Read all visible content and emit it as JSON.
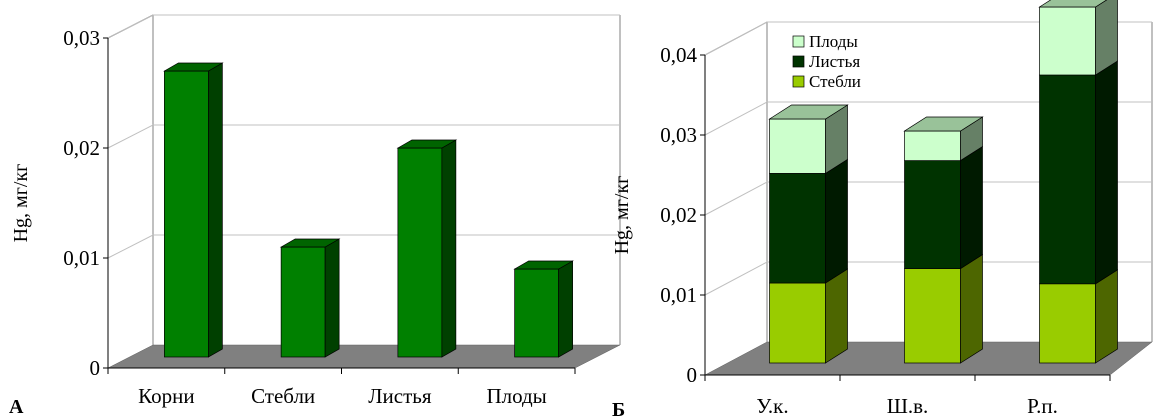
{
  "chart_data": [
    {
      "type": "bar",
      "panel_label": "А",
      "ylabel": "Hg, мг/кг",
      "ylim": [
        0,
        0.03
      ],
      "yticks": [
        "0",
        "0,01",
        "0,02",
        "0,03"
      ],
      "categories": [
        "Корни",
        "Стебли",
        "Листья",
        "Плоды"
      ],
      "values": [
        0.026,
        0.01,
        0.019,
        0.008
      ],
      "colors": {
        "front": "#008000",
        "side": "#004000",
        "top": "#006400",
        "floor": "#808080"
      },
      "grid": true
    },
    {
      "type": "bar",
      "stacked": true,
      "panel_label": "Б",
      "ylabel": "Hg, мг/кг",
      "ylim": [
        0,
        0.04
      ],
      "yticks": [
        "0",
        "0,01",
        "0,02",
        "0,03",
        "0,04"
      ],
      "categories": [
        "У.к.",
        "Ш.в.",
        "Р.п."
      ],
      "series": [
        {
          "name": "Стебли",
          "values": [
            0.01,
            0.0118,
            0.0099
          ],
          "color": "#99cc00",
          "side": "#4d6600",
          "top": "#c2e066"
        },
        {
          "name": "Листья",
          "values": [
            0.0137,
            0.0135,
            0.0261
          ],
          "color": "#003300",
          "side": "#001a00",
          "top": "#336633"
        },
        {
          "name": "Плоды",
          "values": [
            0.0068,
            0.0037,
            0.0085
          ],
          "color": "#ccffcc",
          "side": "#668066",
          "top": "#99c299"
        }
      ],
      "legend_order": [
        "Плоды",
        "Листья",
        "Стебли"
      ],
      "legend_position": "top-left",
      "floor_color": "#808080",
      "grid": true
    }
  ]
}
